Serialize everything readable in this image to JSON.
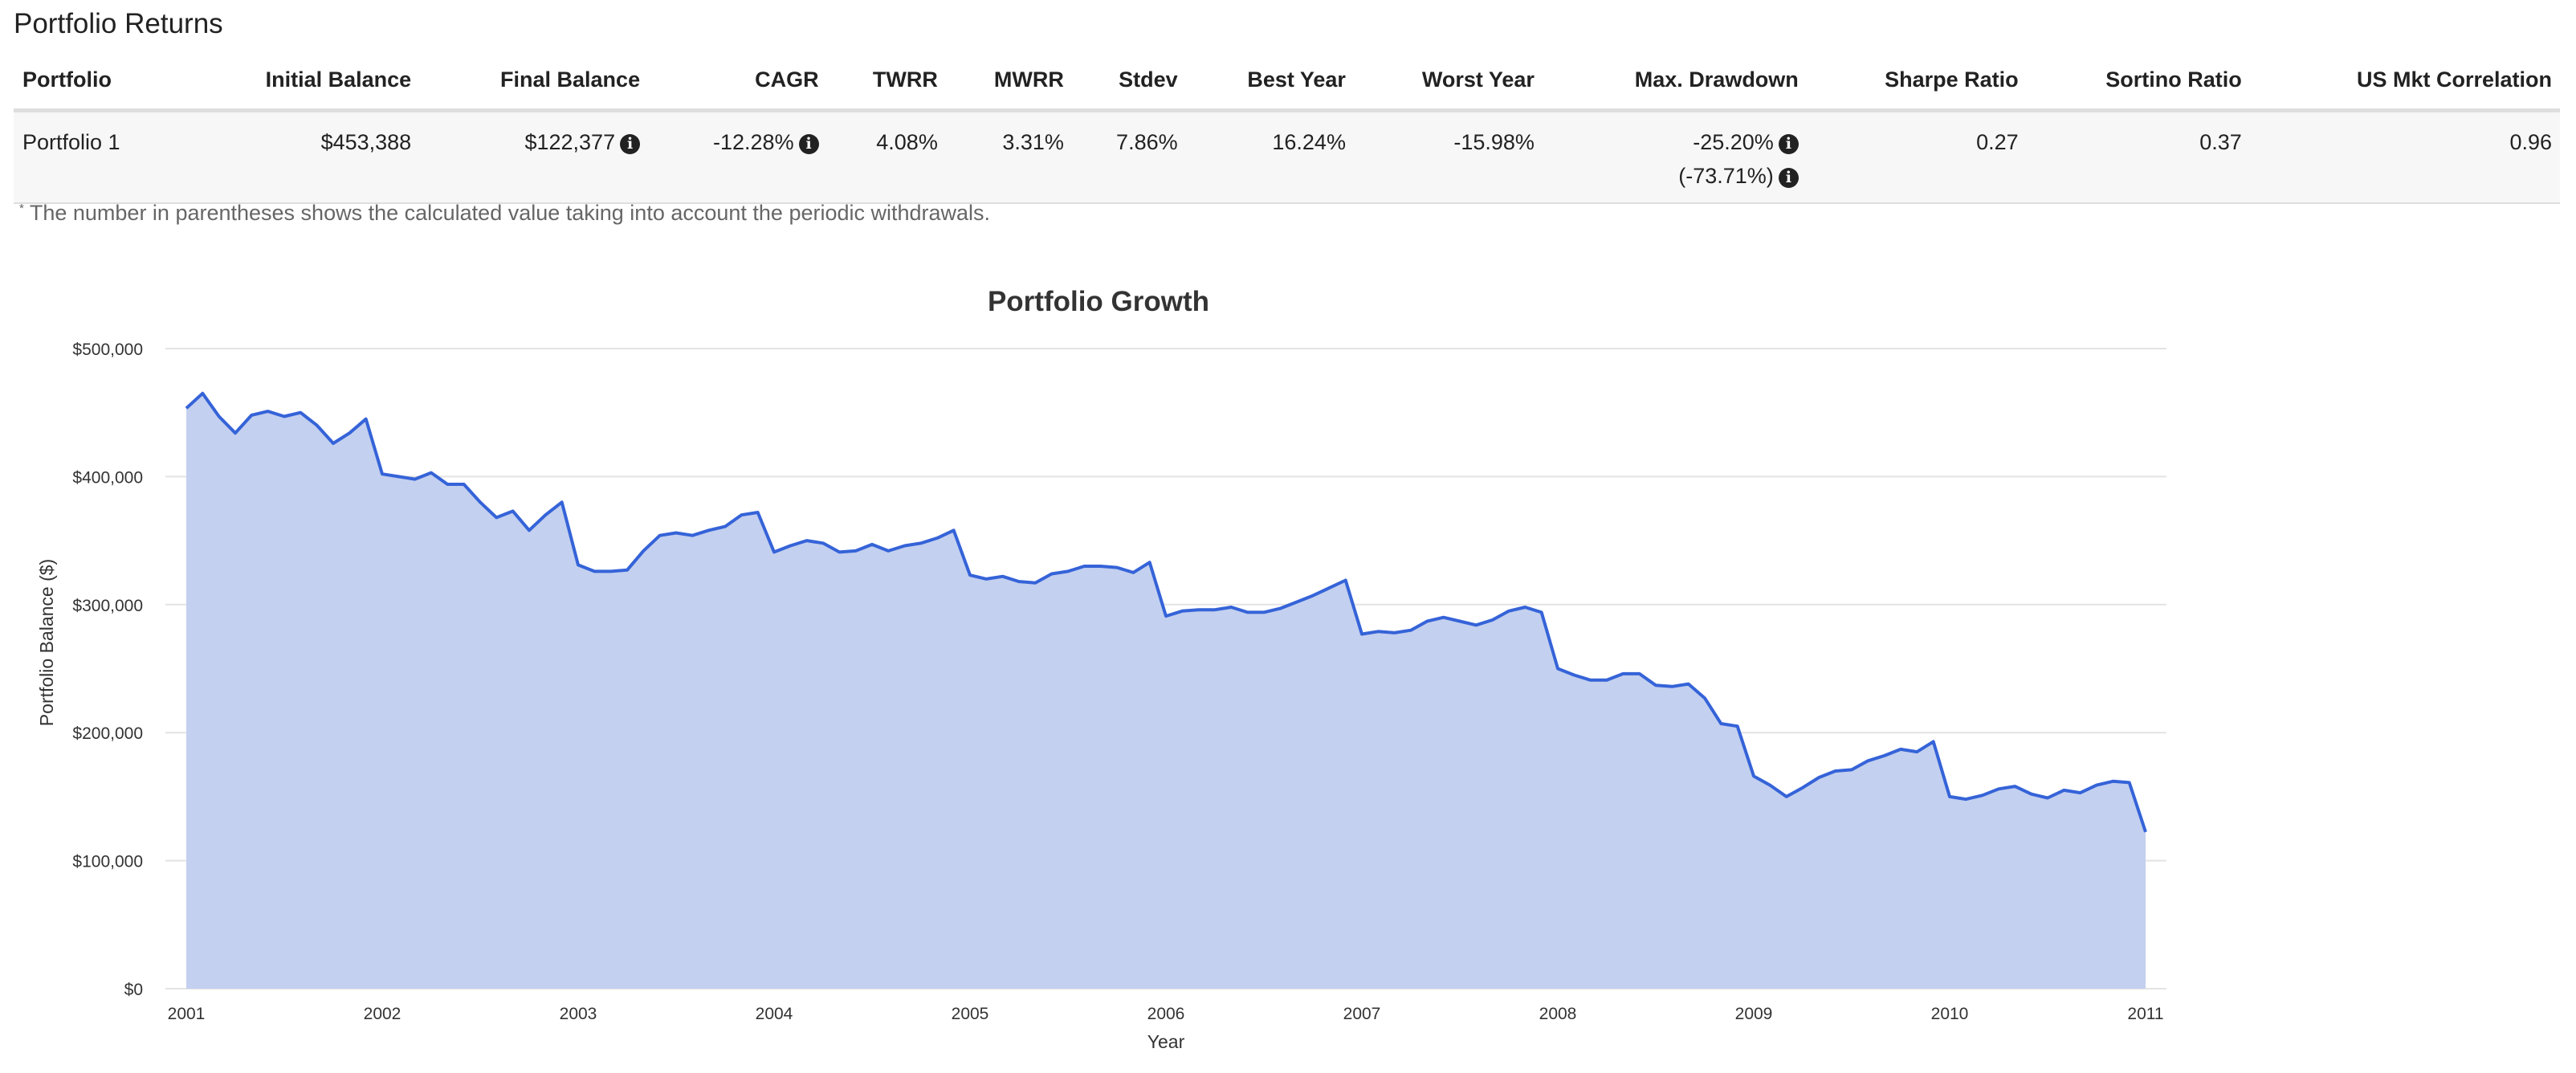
{
  "section_title": "Portfolio Returns",
  "table": {
    "headers": [
      "Portfolio",
      "Initial Balance",
      "Final Balance",
      "CAGR",
      "TWRR",
      "MWRR",
      "Stdev",
      "Best Year",
      "Worst Year",
      "Max. Drawdown",
      "Sharpe Ratio",
      "Sortino Ratio",
      "US Mkt Correlation"
    ],
    "row": {
      "portfolio": "Portfolio 1",
      "initial_balance": "$453,388",
      "final_balance": "$122,377",
      "cagr": "-12.28%",
      "twrr": "4.08%",
      "mwrr": "3.31%",
      "stdev": "7.86%",
      "best_year": "16.24%",
      "worst_year": "-15.98%",
      "max_drawdown": "-25.20%",
      "max_drawdown_withdrawals": "(-73.71%)",
      "sharpe_ratio": "0.27",
      "sortino_ratio": "0.37",
      "us_mkt_correlation": "0.96"
    },
    "info_icon": "info-circle-icon"
  },
  "footnote": {
    "marker": "*",
    "text": "The number in parentheses shows the calculated value taking into account the periodic withdrawals."
  },
  "chart_data": {
    "type": "area",
    "title": "Portfolio Growth",
    "xlabel": "Year",
    "ylabel": "Portfolio Balance ($)",
    "xlim": [
      2001,
      2011
    ],
    "ylim": [
      0,
      500000
    ],
    "x_ticks": [
      "2001",
      "2002",
      "2003",
      "2004",
      "2005",
      "2006",
      "2007",
      "2008",
      "2009",
      "2010",
      "2011"
    ],
    "y_ticks": [
      "$0",
      "$100,000",
      "$200,000",
      "$300,000",
      "$400,000",
      "$500,000"
    ],
    "grid": true,
    "colors": {
      "line": "#3563d8",
      "fill": "#c3d0ef"
    },
    "series": [
      {
        "x": [
          2001.0,
          2001.083,
          2001.167,
          2001.25,
          2001.333,
          2001.417,
          2001.5,
          2001.583,
          2001.667,
          2001.75,
          2001.833,
          2001.917,
          2002.0,
          2002.083,
          2002.167,
          2002.25,
          2002.333,
          2002.417,
          2002.5,
          2002.583,
          2002.667,
          2002.75,
          2002.833,
          2002.917,
          2003.0,
          2003.083,
          2003.167,
          2003.25,
          2003.333,
          2003.417,
          2003.5,
          2003.583,
          2003.667,
          2003.75,
          2003.833,
          2003.917,
          2004.0,
          2004.083,
          2004.167,
          2004.25,
          2004.333,
          2004.417,
          2004.5,
          2004.583,
          2004.667,
          2004.75,
          2004.833,
          2004.917,
          2005.0,
          2005.083,
          2005.167,
          2005.25,
          2005.333,
          2005.417,
          2005.5,
          2005.583,
          2005.667,
          2005.75,
          2005.833,
          2005.917,
          2006.0,
          2006.083,
          2006.167,
          2006.25,
          2006.333,
          2006.417,
          2006.5,
          2006.583,
          2006.667,
          2006.75,
          2006.833,
          2006.917,
          2007.0,
          2007.083,
          2007.167,
          2007.25,
          2007.333,
          2007.417,
          2007.5,
          2007.583,
          2007.667,
          2007.75,
          2007.833,
          2007.917,
          2008.0,
          2008.083,
          2008.167,
          2008.25,
          2008.333,
          2008.417,
          2008.5,
          2008.583,
          2008.667,
          2008.75,
          2008.833,
          2008.917,
          2009.0,
          2009.083,
          2009.167,
          2009.25,
          2009.333,
          2009.417,
          2009.5,
          2009.583,
          2009.667,
          2009.75,
          2009.833,
          2009.917,
          2010.0,
          2010.083,
          2010.167,
          2010.25,
          2010.333,
          2010.417,
          2010.5,
          2010.583,
          2010.667,
          2010.75,
          2010.833,
          2010.917,
          2011.0
        ],
        "values": [
          453388,
          465000,
          447000,
          434000,
          448000,
          451000,
          447000,
          450000,
          440000,
          426000,
          434000,
          445000,
          402000,
          400000,
          398000,
          403000,
          394000,
          394000,
          380000,
          368000,
          373000,
          358000,
          370000,
          380000,
          331000,
          326000,
          326000,
          327000,
          342000,
          354000,
          356000,
          354000,
          358000,
          361000,
          370000,
          372000,
          341000,
          346000,
          350000,
          348000,
          341000,
          342000,
          347000,
          342000,
          346000,
          348000,
          352000,
          358000,
          323000,
          320000,
          322000,
          318000,
          317000,
          324000,
          326000,
          330000,
          330000,
          329000,
          325000,
          333000,
          291000,
          295000,
          296000,
          296000,
          298000,
          294000,
          294000,
          297000,
          302000,
          307000,
          313000,
          319000,
          277000,
          279000,
          278000,
          280000,
          287000,
          290000,
          287000,
          284000,
          288000,
          295000,
          298000,
          294000,
          250000,
          245000,
          241000,
          241000,
          246000,
          246000,
          237000,
          236000,
          238000,
          227000,
          207000,
          205000,
          166000,
          159000,
          150000,
          157000,
          165000,
          170000,
          171000,
          178000,
          182000,
          187000,
          185000,
          193000,
          150000,
          148000,
          151000,
          156000,
          158000,
          152000,
          149000,
          155000,
          153000,
          159000,
          162000,
          161000,
          122377
        ]
      }
    ]
  }
}
